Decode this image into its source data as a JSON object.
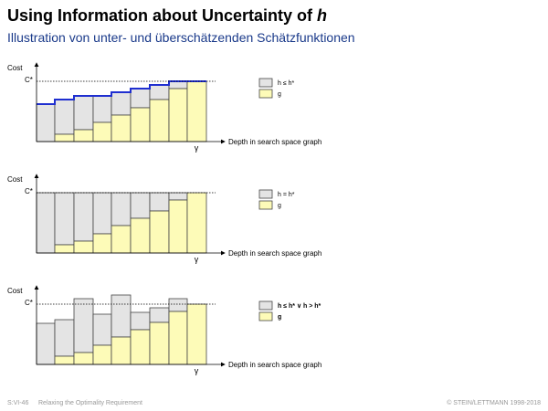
{
  "header": {
    "title": "Using Information about Uncertainty of",
    "title_symbol": "h",
    "subtitle": "Illustration von unter- und überschätzenden Schätzfunktionen"
  },
  "panels": [
    {
      "y_label": "Cost",
      "c_label": "C*",
      "x_label": "Depth in search space graph",
      "goal": "γ",
      "legend": [
        "h ≤ h*",
        "g"
      ]
    },
    {
      "y_label": "Cost",
      "c_label": "C*",
      "x_label": "Depth in search space graph",
      "goal": "γ",
      "legend": [
        "h = h*",
        "g"
      ]
    },
    {
      "y_label": "Cost",
      "c_label": "C*",
      "x_label": "Depth in search space graph",
      "goal": "γ",
      "legend": [
        "h ≤ h*  ∨  h > h*",
        "g"
      ]
    }
  ],
  "footer": {
    "left": "S:VI-46",
    "middle": "Relaxing the Optimality Requirement",
    "right": "© STEIN/LETTMANN 1998-2018"
  }
}
